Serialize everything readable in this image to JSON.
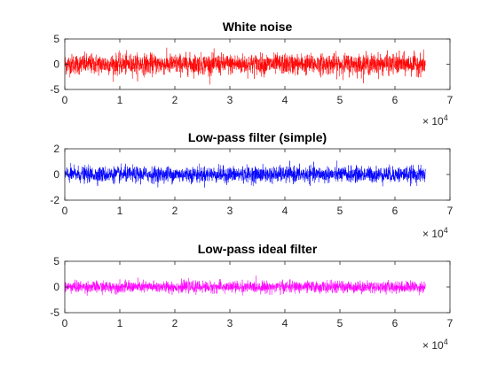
{
  "chart_data": [
    {
      "type": "line",
      "title": "White noise",
      "color": "#ff0000",
      "xlim": [
        0,
        7
      ],
      "ylim": [
        -5,
        5
      ],
      "x_exponent_base": "× 10",
      "x_exponent_power": "4",
      "xticks": [
        "0",
        "1",
        "2",
        "3",
        "4",
        "5",
        "6",
        "7"
      ],
      "yticks": [
        "5",
        "0",
        "-5"
      ],
      "series": [
        {
          "name": "White noise",
          "x_range": [
            0,
            65536
          ],
          "approx_std": 1.0,
          "approx_peak": 4.2
        }
      ]
    },
    {
      "type": "line",
      "title": "Low-pass filter (simple)",
      "color": "#0000ff",
      "xlim": [
        0,
        7
      ],
      "ylim": [
        -2,
        2
      ],
      "x_exponent_base": "× 10",
      "x_exponent_power": "4",
      "xticks": [
        "0",
        "1",
        "2",
        "3",
        "4",
        "5",
        "6",
        "7"
      ],
      "yticks": [
        "2",
        "0",
        "-2"
      ],
      "series": [
        {
          "name": "Low-pass filter (simple)",
          "x_range": [
            0,
            65536
          ],
          "approx_std": 0.3,
          "approx_peak": 1.4
        }
      ]
    },
    {
      "type": "line",
      "title": "Low-pass ideal filter",
      "color": "#ff00ff",
      "xlim": [
        0,
        7
      ],
      "ylim": [
        -5,
        5
      ],
      "x_exponent_base": "× 10",
      "x_exponent_power": "4",
      "xticks": [
        "0",
        "1",
        "2",
        "3",
        "4",
        "5",
        "6",
        "7"
      ],
      "yticks": [
        "5",
        "0",
        "-5"
      ],
      "series": [
        {
          "name": "Low-pass ideal filter",
          "x_range": [
            0,
            65536
          ],
          "approx_std": 0.55,
          "approx_peak": 2.2
        }
      ]
    }
  ]
}
